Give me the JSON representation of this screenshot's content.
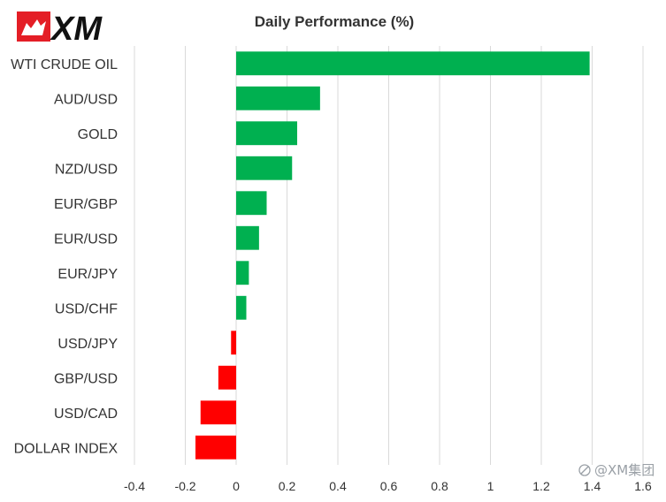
{
  "brand": {
    "logo_text": "XM"
  },
  "watermark": "@XM集团",
  "colors": {
    "positive": "#00b050",
    "negative": "#ff0000",
    "grid": "#d9d9d9",
    "text": "#333333",
    "logo_red": "#e41e26",
    "logo_black": "#111111"
  },
  "chart_data": {
    "type": "bar",
    "orientation": "horizontal",
    "title": "Daily Performance  (%)",
    "xlabel": "",
    "ylabel": "",
    "categories": [
      "WTI CRUDE OIL",
      "AUD/USD",
      "GOLD",
      "NZD/USD",
      "EUR/GBP",
      "EUR/USD",
      "EUR/JPY",
      "USD/CHF",
      "USD/JPY",
      "GBP/USD",
      "USD/CAD",
      "DOLLAR INDEX"
    ],
    "values": [
      1.39,
      0.33,
      0.24,
      0.22,
      0.12,
      0.09,
      0.05,
      0.04,
      -0.02,
      -0.07,
      -0.14,
      -0.16
    ],
    "xlim": [
      -0.4,
      1.6
    ],
    "xticks": [
      -0.4,
      -0.2,
      0,
      0.2,
      0.4,
      0.6,
      0.8,
      1,
      1.2,
      1.4,
      1.6
    ],
    "xtick_labels": [
      "-0.4",
      "-0.2",
      "0",
      "0.2",
      "0.4",
      "0.6",
      "0.8",
      "1",
      "1.2",
      "1.4",
      "1.6"
    ],
    "grid": "vertical",
    "legend": "none"
  }
}
